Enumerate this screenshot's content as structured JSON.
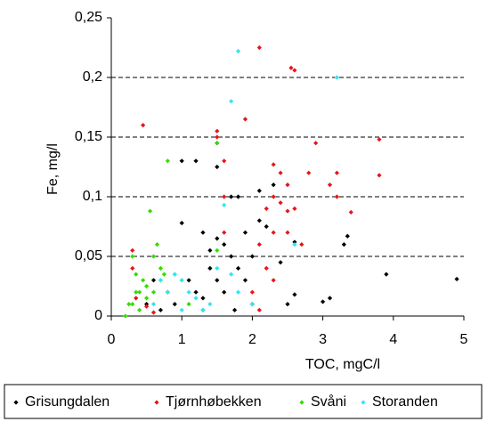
{
  "chart_data": {
    "type": "scatter",
    "x_label": "TOC, mgC/l",
    "y_label": "Fe, mg/l",
    "xlim": [
      0,
      5
    ],
    "xticks": [
      0,
      1,
      2,
      3,
      4,
      5
    ],
    "ylim": [
      0,
      0.25
    ],
    "yticks": [
      {
        "value": 0,
        "label": "0"
      },
      {
        "value": 0.05,
        "label": "0,05"
      },
      {
        "value": 0.1,
        "label": "0,1"
      },
      {
        "value": 0.15,
        "label": "0,15"
      },
      {
        "value": 0.2,
        "label": "0,2"
      },
      {
        "value": 0.25,
        "label": "0,25"
      }
    ],
    "grid": true,
    "legend": "bottom",
    "series": [
      {
        "name": "Grisungdalen",
        "color": "#000000",
        "x": [
          1,
          1.2,
          1.5,
          1.5,
          1,
          1.3,
          1.5,
          1.6,
          1.7,
          1.8,
          2.1,
          2.3,
          2.1,
          2.2,
          2.5,
          2.6,
          2.6,
          3.1,
          3.3,
          3.35,
          3.9,
          4.9,
          0.5,
          0.7,
          0.8,
          0.9,
          1.1,
          1.2,
          1.3,
          1.4,
          1.5,
          1.6,
          1.7,
          1.8,
          1.9,
          2.0,
          1.75,
          1.3,
          0.6,
          1.9,
          2.0,
          3.0,
          1.4,
          2.4
        ],
        "values": [
          0.13,
          0.13,
          0.145,
          0.125,
          0.078,
          0.07,
          0.065,
          0.06,
          0.1,
          0.1,
          0.105,
          0.11,
          0.08,
          0.075,
          0.01,
          0.018,
          0.062,
          0.015,
          0.06,
          0.067,
          0.035,
          0.031,
          0.01,
          0.005,
          0.02,
          0.01,
          0.03,
          0.02,
          0.015,
          0.04,
          0.03,
          0.02,
          0.05,
          0.04,
          0.03,
          0.05,
          0.005,
          0.005,
          0.03,
          0.07,
          0.01,
          0.012,
          0.055,
          0.045
        ]
      },
      {
        "name": "Tjørnhøbekken",
        "color": "#e8141a",
        "x": [
          0.3,
          0.3,
          0.35,
          0.45,
          0.5,
          0.6,
          1.5,
          1.5,
          1.6,
          1.6,
          1.9,
          2.1,
          2.55,
          2.6,
          2.3,
          2.4,
          2.5,
          2.3,
          2.4,
          2.5,
          2.3,
          2.5,
          2.7,
          2.8,
          2.9,
          3.2,
          3.2,
          3.4,
          3.8,
          3.8,
          2.1,
          2.2,
          2.3,
          2.0,
          2.1,
          1.6,
          2.6,
          3.1,
          2.2
        ],
        "values": [
          0.055,
          0.04,
          0.015,
          0.16,
          0.008,
          0.003,
          0.155,
          0.15,
          0.13,
          0.1,
          0.165,
          0.225,
          0.208,
          0.206,
          0.127,
          0.12,
          0.11,
          0.1,
          0.095,
          0.088,
          0.07,
          0.07,
          0.06,
          0.12,
          0.145,
          0.12,
          0.1,
          0.087,
          0.148,
          0.118,
          0.06,
          0.04,
          0.03,
          0.02,
          0.005,
          0.07,
          0.09,
          0.11,
          0.09
        ]
      },
      {
        "name": "Svåni",
        "color": "#33dd00",
        "x": [
          0.2,
          0.3,
          0.35,
          0.3,
          0.4,
          0.45,
          0.5,
          0.55,
          0.6,
          0.65,
          0.7,
          0.75,
          0.8,
          0.8,
          0.9,
          1.0,
          1.1,
          1.5,
          0.4,
          0.5,
          0.6,
          0.35,
          0.25,
          0.7,
          1.5
        ],
        "values": [
          0.0,
          0.05,
          0.035,
          0.01,
          0.02,
          0.03,
          0.025,
          0.088,
          0.05,
          0.06,
          0.04,
          0.035,
          0.13,
          0.02,
          0.035,
          0.03,
          0.01,
          0.145,
          0.005,
          0.015,
          0.02,
          0.02,
          0.01,
          0.03,
          0.055
        ]
      },
      {
        "name": "Storanden",
        "color": "#33e5f0",
        "x": [
          1.8,
          3.2,
          1.7,
          1.6,
          2.6,
          0.7,
          0.9,
          1.0,
          1.1,
          1.2,
          1.4,
          1.5,
          1.7,
          1.8,
          2.0,
          1.3,
          0.8,
          1.0,
          0.6
        ],
        "values": [
          0.222,
          0.2,
          0.18,
          0.093,
          0.06,
          0.03,
          0.035,
          0.03,
          0.02,
          0.015,
          0.01,
          0.04,
          0.035,
          0.02,
          0.01,
          0.005,
          0.02,
          0.005,
          0.01
        ]
      }
    ]
  }
}
